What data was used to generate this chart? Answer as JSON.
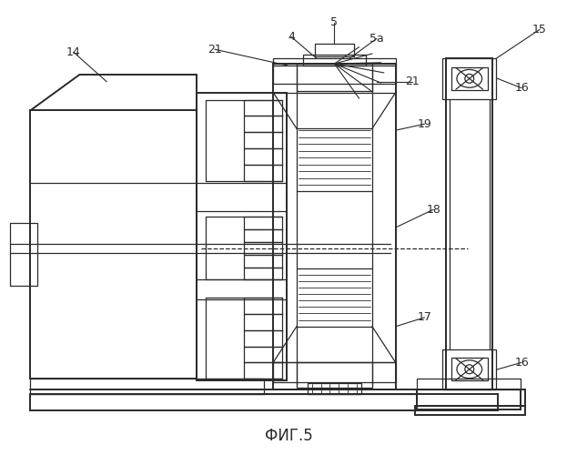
{
  "title": "ФИГ.5",
  "bg_color": "#ffffff",
  "line_color": "#2a2a2a",
  "figsize": [
    6.34,
    5.0
  ],
  "dpi": 100
}
